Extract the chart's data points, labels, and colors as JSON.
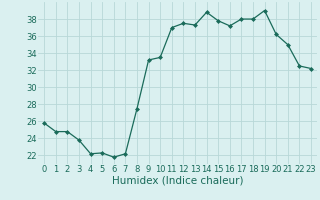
{
  "x": [
    0,
    1,
    2,
    3,
    4,
    5,
    6,
    7,
    8,
    9,
    10,
    11,
    12,
    13,
    14,
    15,
    16,
    17,
    18,
    19,
    20,
    21,
    22,
    23
  ],
  "y": [
    25.8,
    24.8,
    24.8,
    23.8,
    22.2,
    22.3,
    21.8,
    22.2,
    27.5,
    33.2,
    33.5,
    37.0,
    37.5,
    37.3,
    38.8,
    37.8,
    37.2,
    38.0,
    38.0,
    39.0,
    36.2,
    35.0,
    32.5,
    32.2
  ],
  "line_color": "#1a6b5a",
  "marker": "D",
  "marker_size": 2,
  "bg_color": "#daf0f0",
  "grid_color": "#b8d8d8",
  "xlabel": "Humidex (Indice chaleur)",
  "xlim": [
    -0.5,
    23.5
  ],
  "ylim": [
    21,
    40
  ],
  "yticks": [
    22,
    24,
    26,
    28,
    30,
    32,
    34,
    36,
    38
  ],
  "xticks": [
    0,
    1,
    2,
    3,
    4,
    5,
    6,
    7,
    8,
    9,
    10,
    11,
    12,
    13,
    14,
    15,
    16,
    17,
    18,
    19,
    20,
    21,
    22,
    23
  ],
  "tick_label_color": "#1a6b5a",
  "xlabel_color": "#1a6b5a",
  "tick_fontsize": 6.0,
  "xlabel_fontsize": 7.5,
  "linewidth": 0.9
}
